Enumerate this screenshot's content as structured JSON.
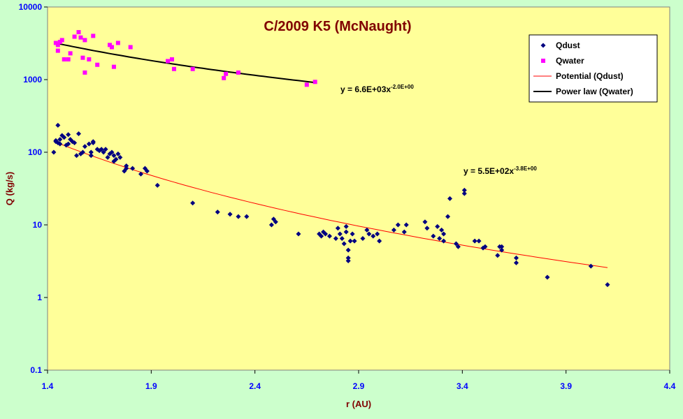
{
  "chart_data": {
    "type": "scatter",
    "title": "C/2009 K5 (McNaught)",
    "xlabel": "r (AU)",
    "ylabel": "Q (kg/s)",
    "xlim": [
      1.4,
      4.4
    ],
    "ylim": [
      0.1,
      10000
    ],
    "y_scale": "log",
    "x_ticks": [
      "1.4",
      "1.9",
      "2.4",
      "2.9",
      "3.4",
      "3.9",
      "4.4"
    ],
    "y_ticks": [
      "0.1",
      "1",
      "10",
      "100",
      "1000",
      "10000"
    ],
    "grid": false,
    "legend_position": "top-right",
    "colors": {
      "plot_bg": "#ffff99",
      "outer_bg": "#ccffcc",
      "title": "#800000",
      "axis_label": "#800000",
      "tick_label": "#0000ff",
      "qdust": "#000080",
      "qwater": "#ff00ff",
      "fit_dust": "#ff0000",
      "fit_water": "#000000"
    },
    "series": [
      {
        "name": "Qdust",
        "marker": "diamond",
        "points": [
          [
            1.43,
            100
          ],
          [
            1.44,
            140
          ],
          [
            1.44,
            145
          ],
          [
            1.45,
            235
          ],
          [
            1.45,
            135
          ],
          [
            1.46,
            130
          ],
          [
            1.46,
            150
          ],
          [
            1.47,
            170
          ],
          [
            1.48,
            160
          ],
          [
            1.49,
            125
          ],
          [
            1.5,
            175
          ],
          [
            1.5,
            130
          ],
          [
            1.51,
            150
          ],
          [
            1.52,
            140
          ],
          [
            1.53,
            135
          ],
          [
            1.54,
            90
          ],
          [
            1.55,
            180
          ],
          [
            1.56,
            95
          ],
          [
            1.57,
            100
          ],
          [
            1.58,
            120
          ],
          [
            1.6,
            130
          ],
          [
            1.61,
            100
          ],
          [
            1.61,
            90
          ],
          [
            1.62,
            140
          ],
          [
            1.62,
            135
          ],
          [
            1.64,
            110
          ],
          [
            1.65,
            105
          ],
          [
            1.66,
            110
          ],
          [
            1.67,
            100
          ],
          [
            1.68,
            110
          ],
          [
            1.69,
            85
          ],
          [
            1.7,
            95
          ],
          [
            1.71,
            100
          ],
          [
            1.72,
            90
          ],
          [
            1.72,
            75
          ],
          [
            1.73,
            80
          ],
          [
            1.74,
            95
          ],
          [
            1.75,
            85
          ],
          [
            1.77,
            55
          ],
          [
            1.78,
            65
          ],
          [
            1.78,
            60
          ],
          [
            1.81,
            60
          ],
          [
            1.85,
            50
          ],
          [
            1.87,
            60
          ],
          [
            1.88,
            55
          ],
          [
            1.93,
            35
          ],
          [
            2.1,
            20
          ],
          [
            2.22,
            15
          ],
          [
            2.28,
            14
          ],
          [
            2.32,
            13
          ],
          [
            2.36,
            13
          ],
          [
            2.48,
            10
          ],
          [
            2.49,
            12
          ],
          [
            2.5,
            11
          ],
          [
            2.61,
            7.5
          ],
          [
            2.71,
            7.5
          ],
          [
            2.72,
            7
          ],
          [
            2.73,
            8
          ],
          [
            2.74,
            7.5
          ],
          [
            2.76,
            7
          ],
          [
            2.79,
            6.5
          ],
          [
            2.8,
            9
          ],
          [
            2.81,
            7.5
          ],
          [
            2.82,
            6.5
          ],
          [
            2.83,
            5.5
          ],
          [
            2.84,
            9.5
          ],
          [
            2.84,
            8
          ],
          [
            2.85,
            4.5
          ],
          [
            2.85,
            3.5
          ],
          [
            2.85,
            3.2
          ],
          [
            2.86,
            6
          ],
          [
            2.87,
            7.5
          ],
          [
            2.88,
            6
          ],
          [
            2.92,
            6.5
          ],
          [
            2.94,
            8.5
          ],
          [
            2.95,
            7.5
          ],
          [
            2.97,
            7
          ],
          [
            2.99,
            7.5
          ],
          [
            3.0,
            6
          ],
          [
            3.07,
            8.5
          ],
          [
            3.09,
            10
          ],
          [
            3.12,
            8
          ],
          [
            3.13,
            10
          ],
          [
            3.22,
            11
          ],
          [
            3.23,
            9
          ],
          [
            3.26,
            7
          ],
          [
            3.28,
            9.5
          ],
          [
            3.29,
            6.5
          ],
          [
            3.3,
            8.5
          ],
          [
            3.31,
            7.5
          ],
          [
            3.31,
            6
          ],
          [
            3.33,
            13
          ],
          [
            3.34,
            23
          ],
          [
            3.37,
            5.5
          ],
          [
            3.38,
            5
          ],
          [
            3.41,
            30
          ],
          [
            3.41,
            27
          ],
          [
            3.46,
            6
          ],
          [
            3.48,
            6
          ],
          [
            3.5,
            4.8
          ],
          [
            3.51,
            5
          ],
          [
            3.57,
            3.8
          ],
          [
            3.58,
            5
          ],
          [
            3.59,
            5
          ],
          [
            3.59,
            4.5
          ],
          [
            3.66,
            3.5
          ],
          [
            3.66,
            3
          ],
          [
            3.81,
            1.9
          ],
          [
            4.02,
            2.7
          ],
          [
            4.1,
            1.5
          ]
        ]
      },
      {
        "name": "Qwater",
        "marker": "square",
        "points": [
          [
            1.44,
            3200
          ],
          [
            1.45,
            3000
          ],
          [
            1.45,
            2500
          ],
          [
            1.46,
            3300
          ],
          [
            1.47,
            3500
          ],
          [
            1.48,
            1900
          ],
          [
            1.5,
            1900
          ],
          [
            1.51,
            2300
          ],
          [
            1.53,
            3900
          ],
          [
            1.55,
            4500
          ],
          [
            1.56,
            3800
          ],
          [
            1.57,
            2000
          ],
          [
            1.58,
            1250
          ],
          [
            1.58,
            3500
          ],
          [
            1.6,
            1900
          ],
          [
            1.62,
            4000
          ],
          [
            1.64,
            1600
          ],
          [
            1.7,
            3000
          ],
          [
            1.71,
            2800
          ],
          [
            1.72,
            1500
          ],
          [
            1.74,
            3200
          ],
          [
            1.8,
            2800
          ],
          [
            1.98,
            1800
          ],
          [
            2.0,
            1900
          ],
          [
            2.01,
            1400
          ],
          [
            2.1,
            1400
          ],
          [
            2.25,
            1050
          ],
          [
            2.26,
            1200
          ],
          [
            2.32,
            1250
          ],
          [
            2.65,
            850
          ],
          [
            2.69,
            930
          ]
        ]
      }
    ],
    "trendlines": [
      {
        "name": "Potential (Qdust)",
        "of_series": "Qdust",
        "equation_label": "y = 5.5E+02x",
        "exponent_label": "-3.8E+00",
        "a": 550,
        "b": -3.8,
        "x_range": [
          1.43,
          4.1
        ]
      },
      {
        "name": "Power law (Qwater)",
        "of_series": "Qwater",
        "equation_label": "y = 6.6E+03x",
        "exponent_label": "-2.0E+00",
        "a": 6600,
        "b": -2.0,
        "x_range": [
          1.44,
          2.69
        ]
      }
    ]
  }
}
